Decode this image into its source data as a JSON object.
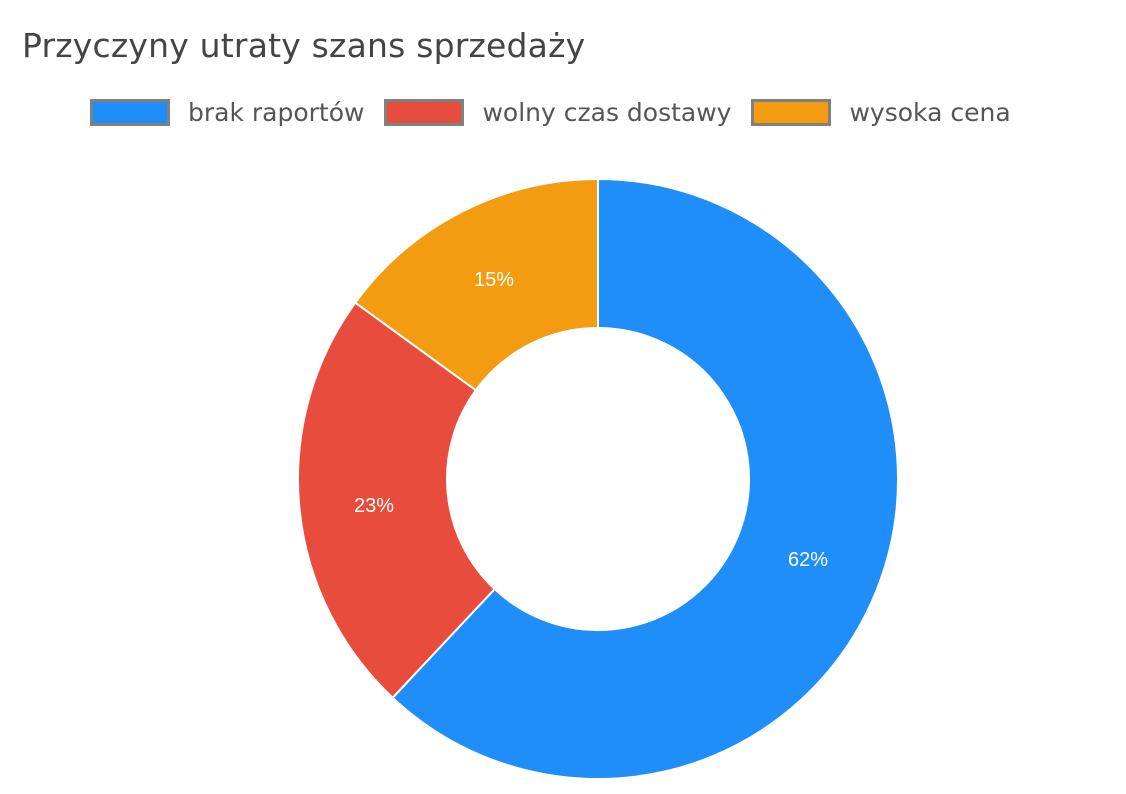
{
  "chart_data": {
    "type": "pie",
    "variant": "doughnut",
    "title": "Przyczyny utraty szans sprzedaży",
    "categories": [
      "brak raportów",
      "wolny czas dostawy",
      "wysoka cena"
    ],
    "values": [
      62,
      23,
      15
    ],
    "value_labels": [
      "62%",
      "23%",
      "15%"
    ],
    "colors": [
      "#1f8ef8",
      "#e74c3c",
      "#f39c12"
    ],
    "legend_position": "top-right",
    "start_angle": "12 o'clock, clockwise",
    "inner_radius_ratio": 0.5
  },
  "title": "Przyczyny utraty szans sprzedaży",
  "legend": [
    {
      "label": "brak raportów",
      "color": "#1f8ef8"
    },
    {
      "label": "wolny czas dostawy",
      "color": "#e74c3c"
    },
    {
      "label": "wysoka cena",
      "color": "#f39c12"
    }
  ],
  "slices": [
    {
      "label": "62%",
      "value": 62,
      "color": "#1f8ef8"
    },
    {
      "label": "23%",
      "value": 23,
      "color": "#e74c3c"
    },
    {
      "label": "15%",
      "value": 15,
      "color": "#f39c12"
    }
  ]
}
